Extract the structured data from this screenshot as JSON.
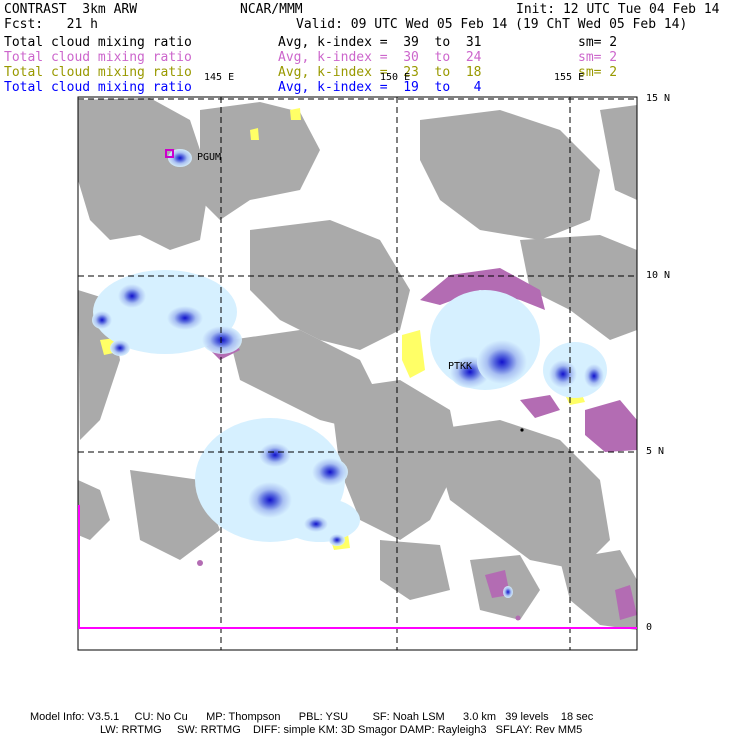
{
  "header": {
    "model": "CONTRAST  3km ARW",
    "center": "NCAR/MMM",
    "init": "Init: 12 UTC Tue 04 Feb 14",
    "fcst": "Fcst:   21 h",
    "valid": "Valid: 09 UTC Wed 05 Feb 14 (19 ChT Wed 05 Feb 14)"
  },
  "fields": [
    {
      "name": "Total cloud mixing ratio",
      "stat": "Avg, k-index =  39  to  31",
      "sm": "sm= 2",
      "color": "#000000"
    },
    {
      "name": "Total cloud mixing ratio",
      "stat": "Avg, k-index =  30  to  24",
      "sm": "sm= 2",
      "color": "#cc66cc"
    },
    {
      "name": "Total cloud mixing ratio",
      "stat": "Avg, k-index =  23  to  18",
      "sm": "sm= 2",
      "color": "#999900"
    },
    {
      "name": "Total cloud mixing ratio",
      "stat": "Avg, k-index =  19  to   4",
      "sm": "",
      "color": "#0000ff"
    }
  ],
  "map": {
    "lon_labels": [
      "145 E",
      "150 E",
      "155 E"
    ],
    "lat_labels": [
      "15 N",
      "10 N",
      "5 N",
      "0"
    ],
    "stations": [
      "PGUM",
      "PTKK"
    ]
  },
  "footer": {
    "line1": "Model Info: V3.5.1     CU: No Cu      MP: Thompson      PBL: YSU        SF: Noah LSM      3.0 km   39 levels    18 sec",
    "line2": "LW: RRTMG     SW: RRTMG    DIFF: simple KM: 3D Smagor DAMP: Rayleigh3   SFLAY: Rev MM5"
  },
  "colors": {
    "gray_cloud": "#aaaaaa",
    "purple_cloud": "#b36cb3",
    "yellow_cloud": "#ffff66",
    "light_blue": "#cceeff",
    "mid_blue": "#8899ee",
    "dark_blue": "#1111cc",
    "boundary": "#ff00ff"
  }
}
